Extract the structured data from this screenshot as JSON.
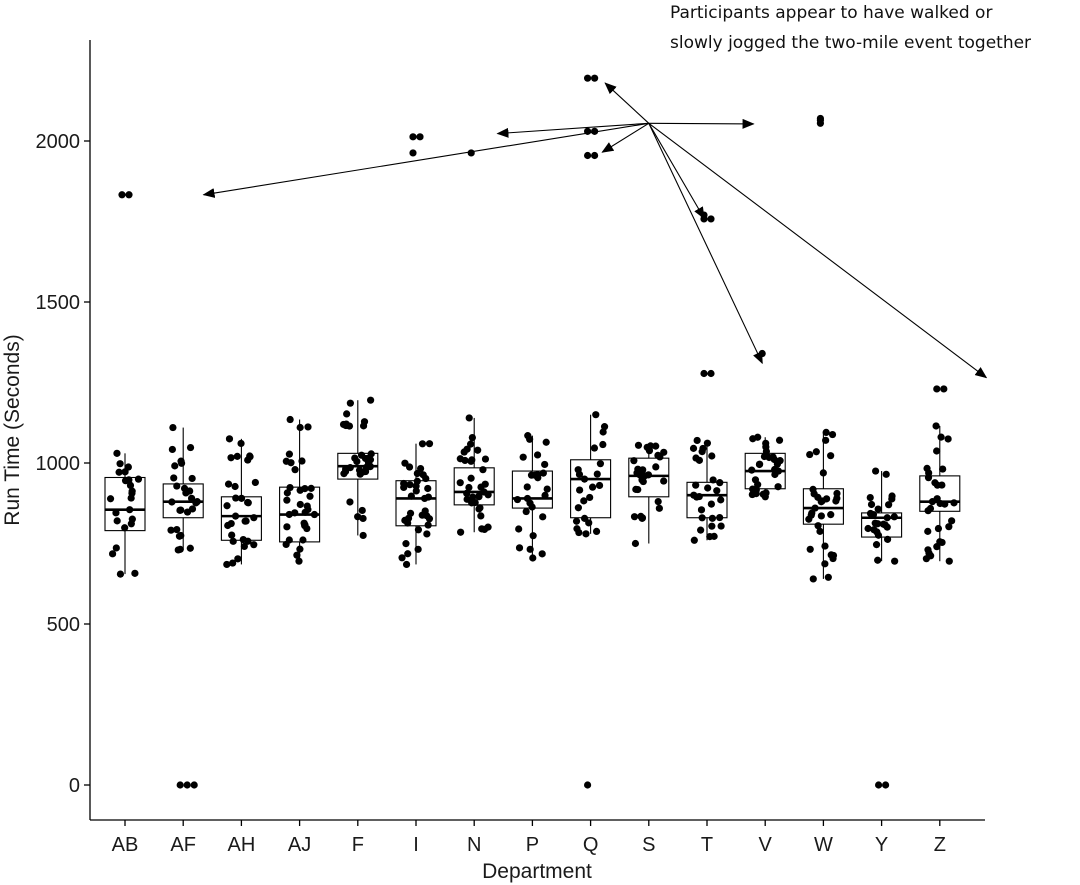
{
  "chart_data": {
    "type": "boxplot",
    "xlabel": "Department",
    "ylabel": "Run Time (Seconds)",
    "ylim": [
      -100,
      2300
    ],
    "yticks": [
      0,
      500,
      1000,
      1500,
      2000
    ],
    "categories": [
      "AB",
      "AF",
      "AH",
      "AJ",
      "F",
      "I",
      "N",
      "P",
      "Q",
      "S",
      "T",
      "V",
      "W",
      "Y",
      "Z"
    ],
    "boxes": [
      {
        "q1": 790,
        "median": 855,
        "q3": 955,
        "wlow": 655,
        "whigh": 1030
      },
      {
        "q1": 830,
        "median": 880,
        "q3": 935,
        "wlow": 730,
        "whigh": 1110
      },
      {
        "q1": 760,
        "median": 835,
        "q3": 895,
        "wlow": 685,
        "whigh": 1075
      },
      {
        "q1": 755,
        "median": 840,
        "q3": 925,
        "wlow": 695,
        "whigh": 1135
      },
      {
        "q1": 950,
        "median": 990,
        "q3": 1030,
        "wlow": 775,
        "whigh": 1195
      },
      {
        "q1": 805,
        "median": 890,
        "q3": 945,
        "wlow": 685,
        "whigh": 1060
      },
      {
        "q1": 870,
        "median": 910,
        "q3": 985,
        "wlow": 785,
        "whigh": 1140
      },
      {
        "q1": 860,
        "median": 890,
        "q3": 975,
        "wlow": 705,
        "whigh": 1085
      },
      {
        "q1": 830,
        "median": 950,
        "q3": 1010,
        "wlow": 780,
        "whigh": 1150
      },
      {
        "q1": 895,
        "median": 960,
        "q3": 1015,
        "wlow": 750,
        "whigh": 1055
      },
      {
        "q1": 830,
        "median": 900,
        "q3": 940,
        "wlow": 760,
        "whigh": 1070
      },
      {
        "q1": 920,
        "median": 975,
        "q3": 1030,
        "wlow": 895,
        "whigh": 1080
      },
      {
        "q1": 810,
        "median": 860,
        "q3": 920,
        "wlow": 640,
        "whigh": 1095
      },
      {
        "q1": 770,
        "median": 830,
        "q3": 845,
        "wlow": 695,
        "whigh": 975
      },
      {
        "q1": 850,
        "median": 880,
        "q3": 960,
        "wlow": 695,
        "whigh": 1115
      }
    ],
    "outliers": [
      {
        "dept": "AB",
        "values": [
          1833,
          1833
        ]
      },
      {
        "dept": "AF",
        "values": [
          0,
          0,
          0
        ]
      },
      {
        "dept": "I",
        "values": [
          2013,
          2013,
          1963
        ]
      },
      {
        "dept": "N",
        "values": [
          1963
        ]
      },
      {
        "dept": "Q",
        "values": [
          2195,
          2195,
          2030,
          2030,
          1955,
          1955,
          0
        ]
      },
      {
        "dept": "T",
        "values": [
          1770,
          1758,
          1758,
          1278,
          1278
        ]
      },
      {
        "dept": "V",
        "values": [
          1340
        ]
      },
      {
        "dept": "W",
        "values": [
          2055,
          2065,
          2070
        ]
      },
      {
        "dept": "Y",
        "values": [
          0,
          0
        ]
      },
      {
        "dept": "Z",
        "values": [
          1230,
          1230
        ]
      }
    ],
    "annotation": {
      "lines": [
        "Participants appear to have walked or",
        "slowly jogged the two-mile event together"
      ],
      "arrow_origin": {
        "dept_pos": 9.0,
        "value": 2055
      },
      "arrow_targets": [
        {
          "dept_pos": 1.35,
          "value": 1833
        },
        {
          "dept_pos": 6.4,
          "value": 2023
        },
        {
          "dept_pos": 8.2,
          "value": 1965
        },
        {
          "dept_pos": 8.25,
          "value": 2180
        },
        {
          "dept_pos": 10.8,
          "value": 2053
        },
        {
          "dept_pos": 9.95,
          "value": 1760
        },
        {
          "dept_pos": 10.95,
          "value": 1310
        },
        {
          "dept_pos": 14.8,
          "value": 1265
        }
      ]
    }
  }
}
